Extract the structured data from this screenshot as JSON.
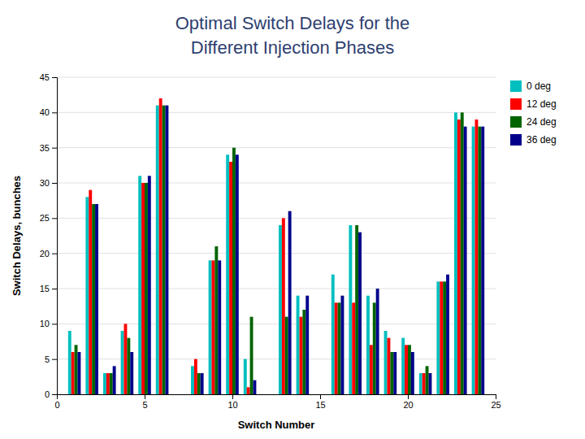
{
  "chart_data": {
    "type": "bar",
    "title": "Optimal Switch Delays for the",
    "subtitle": "Different Injection Phases",
    "xlabel": "Switch Number",
    "ylabel": "Switch Delays, bunches",
    "x": [
      1,
      2,
      3,
      4,
      5,
      6,
      8,
      9,
      10,
      11,
      13,
      14,
      16,
      17,
      18,
      19,
      20,
      21,
      22,
      23,
      24
    ],
    "series": [
      {
        "name": "0 deg",
        "color": "#00BFBF",
        "values": [
          9,
          28,
          3,
          9,
          31,
          41,
          4,
          19,
          34,
          5,
          24,
          14,
          17,
          24,
          14,
          9,
          8,
          3,
          16,
          40,
          38
        ]
      },
      {
        "name": "12 deg",
        "color": "#FF0000",
        "values": [
          6,
          29,
          3,
          10,
          30,
          42,
          5,
          19,
          33,
          1,
          25,
          11,
          13,
          13,
          7,
          8,
          7,
          3,
          16,
          39,
          39
        ]
      },
      {
        "name": "24 deg",
        "color": "#006400",
        "values": [
          7,
          27,
          3,
          8,
          30,
          41,
          3,
          21,
          35,
          11,
          11,
          12,
          13,
          24,
          13,
          6,
          7,
          4,
          16,
          40,
          38
        ]
      },
      {
        "name": "36 deg",
        "color": "#00008B",
        "values": [
          6,
          27,
          4,
          6,
          31,
          41,
          3,
          19,
          34,
          2,
          26,
          14,
          14,
          23,
          15,
          6,
          6,
          3,
          17,
          38,
          38
        ]
      }
    ],
    "xlim": [
      0,
      25
    ],
    "ylim": [
      0,
      45
    ],
    "xticks": [
      0,
      5,
      10,
      15,
      20,
      25
    ],
    "yticks": [
      0,
      5,
      10,
      15,
      20,
      25,
      30,
      35,
      40,
      45
    ],
    "grid": true,
    "legend": "right"
  }
}
